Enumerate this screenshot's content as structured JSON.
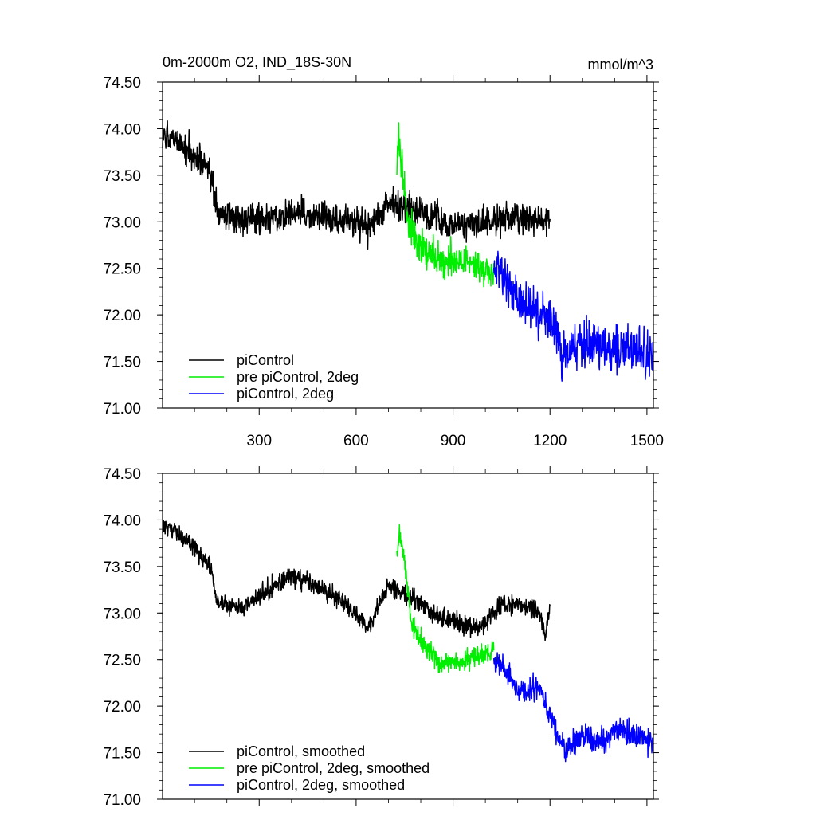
{
  "colors": {
    "piControl": "#000000",
    "pre_piControl_2deg": "#00ee00",
    "piControl_2deg": "#0000ff"
  },
  "chart_data": [
    {
      "type": "line",
      "title": "0m-2000m O2, IND_18S-30N",
      "units": "mmol/m^3",
      "xlim": [
        1,
        1520
      ],
      "ylim": [
        71.0,
        74.5
      ],
      "xticks": [
        300,
        600,
        900,
        1200,
        1500
      ],
      "xtick_labels": [
        "300",
        "600",
        "900",
        "1200",
        "1500"
      ],
      "yticks": [
        71.0,
        71.5,
        72.0,
        72.5,
        73.0,
        73.5,
        74.0,
        74.5
      ],
      "ytick_labels": [
        "71.00",
        "71.50",
        "72.00",
        "72.50",
        "73.00",
        "73.50",
        "74.00",
        "74.50"
      ],
      "legend": {
        "position": "bottom-left",
        "entries": [
          "piControl",
          "pre piControl, 2deg",
          "piControl, 2deg"
        ]
      },
      "series": [
        {
          "name": "piControl",
          "color": "#000000",
          "x_range": [
            1,
            1200
          ],
          "noise": 0.14,
          "trend": [
            [
              1,
              73.9
            ],
            [
              50,
              73.85
            ],
            [
              100,
              73.7
            ],
            [
              150,
              73.5
            ],
            [
              170,
              73.1
            ],
            [
              250,
              73.0
            ],
            [
              400,
              73.1
            ],
            [
              500,
              73.05
            ],
            [
              600,
              73.0
            ],
            [
              640,
              72.9
            ],
            [
              700,
              73.2
            ],
            [
              760,
              73.15
            ],
            [
              900,
              72.95
            ],
            [
              1000,
              73.0
            ],
            [
              1100,
              73.05
            ],
            [
              1180,
              73.0
            ],
            [
              1200,
              73.0
            ]
          ]
        },
        {
          "name": "pre piControl, 2deg",
          "color": "#00ee00",
          "x_range": [
            726,
            1026
          ],
          "noise": 0.17,
          "trend": [
            [
              726,
              73.6
            ],
            [
              732,
              73.9
            ],
            [
              745,
              73.5
            ],
            [
              760,
              73.0
            ],
            [
              800,
              72.75
            ],
            [
              870,
              72.55
            ],
            [
              950,
              72.55
            ],
            [
              1026,
              72.5
            ]
          ]
        },
        {
          "name": "piControl, 2deg",
          "color": "#0000ff",
          "x_range": [
            1026,
            1520
          ],
          "noise": 0.2,
          "trend": [
            [
              1026,
              72.5
            ],
            [
              1080,
              72.3
            ],
            [
              1130,
              72.1
            ],
            [
              1200,
              71.95
            ],
            [
              1240,
              71.55
            ],
            [
              1300,
              71.7
            ],
            [
              1400,
              71.65
            ],
            [
              1520,
              71.6
            ]
          ]
        }
      ]
    },
    {
      "type": "line",
      "title": "",
      "xlim": [
        1,
        1520
      ],
      "ylim": [
        71.0,
        74.5
      ],
      "xticks": [
        300,
        600,
        900,
        1200,
        1500
      ],
      "yticks": [
        71.0,
        71.5,
        72.0,
        72.5,
        73.0,
        73.5,
        74.0,
        74.5
      ],
      "ytick_labels": [
        "71.00",
        "71.50",
        "72.00",
        "72.50",
        "73.00",
        "73.50",
        "74.00",
        "74.50"
      ],
      "legend": {
        "position": "bottom-left",
        "entries": [
          "piControl, smoothed",
          "pre piControl, 2deg, smoothed",
          "piControl, 2deg, smoothed"
        ]
      },
      "series": [
        {
          "name": "piControl, smoothed",
          "color": "#000000",
          "x_range": [
            1,
            1200
          ],
          "noise": 0.085,
          "trend": [
            [
              1,
              73.95
            ],
            [
              50,
              73.85
            ],
            [
              100,
              73.7
            ],
            [
              150,
              73.5
            ],
            [
              170,
              73.1
            ],
            [
              250,
              73.05
            ],
            [
              300,
              73.2
            ],
            [
              400,
              73.4
            ],
            [
              500,
              73.25
            ],
            [
              550,
              73.15
            ],
            [
              590,
              73.0
            ],
            [
              640,
              72.85
            ],
            [
              700,
              73.3
            ],
            [
              760,
              73.2
            ],
            [
              860,
              72.95
            ],
            [
              960,
              72.85
            ],
            [
              1000,
              72.9
            ],
            [
              1050,
              73.1
            ],
            [
              1100,
              73.1
            ],
            [
              1170,
              73.0
            ],
            [
              1185,
              72.75
            ],
            [
              1200,
              73.1
            ]
          ]
        },
        {
          "name": "pre piControl, 2deg, smoothed",
          "color": "#00ee00",
          "x_range": [
            726,
            1026
          ],
          "noise": 0.09,
          "trend": [
            [
              726,
              73.6
            ],
            [
              734,
              73.85
            ],
            [
              748,
              73.6
            ],
            [
              770,
              72.9
            ],
            [
              800,
              72.7
            ],
            [
              860,
              72.45
            ],
            [
              950,
              72.5
            ],
            [
              1026,
              72.6
            ]
          ]
        },
        {
          "name": "piControl, 2deg, smoothed",
          "color": "#0000ff",
          "x_range": [
            1026,
            1520
          ],
          "noise": 0.11,
          "trend": [
            [
              1026,
              72.5
            ],
            [
              1060,
              72.4
            ],
            [
              1100,
              72.15
            ],
            [
              1160,
              72.2
            ],
            [
              1190,
              72.0
            ],
            [
              1210,
              71.8
            ],
            [
              1250,
              71.5
            ],
            [
              1300,
              71.7
            ],
            [
              1350,
              71.6
            ],
            [
              1400,
              71.75
            ],
            [
              1450,
              71.7
            ],
            [
              1520,
              71.6
            ]
          ]
        }
      ]
    }
  ]
}
